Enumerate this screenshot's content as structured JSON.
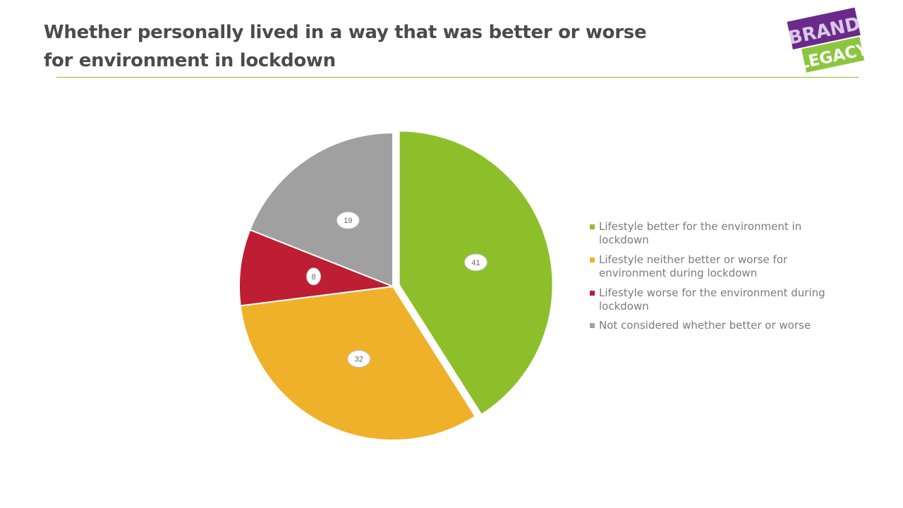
{
  "header": {
    "title": "Whether personally lived in a way that was better or worse for environment in lockdown"
  },
  "logo": {
    "line1": "BRAND",
    "line2": "LEGACY",
    "colors": {
      "top": "#6a2a8c",
      "bottom": "#8cc63f"
    }
  },
  "chart_data": {
    "type": "pie",
    "title": "Whether personally lived in a way that was better or worse for environment in lockdown",
    "legend_position": "right",
    "start_angle_deg": 0,
    "direction": "clockwise",
    "exploded_slice_index": 0,
    "slices": [
      {
        "label": "Lifestyle better for the environment in lockdown",
        "value": 41,
        "color": "#8cbf2a"
      },
      {
        "label": "Lifestyle neither better or worse for environment during lockdown",
        "value": 32,
        "color": "#f0b12a"
      },
      {
        "label": "Lifestyle worse for the environment during lockdown",
        "value": 8,
        "color": "#be1e33"
      },
      {
        "label": "Not considered whether better or worse",
        "value": 19,
        "color": "#a0a0a0"
      }
    ]
  }
}
